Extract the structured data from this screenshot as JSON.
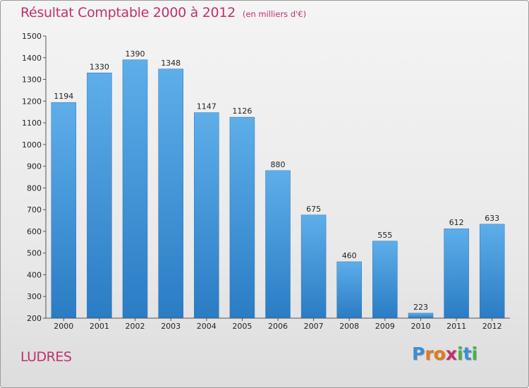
{
  "chart_data": {
    "type": "bar",
    "title": "Résultat Comptable 2000 à 2012",
    "subtitle": "(en milliers d'€)",
    "categories": [
      "2000",
      "2001",
      "2002",
      "2003",
      "2004",
      "2005",
      "2006",
      "2007",
      "2008",
      "2009",
      "2010",
      "2011",
      "2012"
    ],
    "values": [
      1194,
      1330,
      1390,
      1348,
      1147,
      1126,
      880,
      675,
      460,
      555,
      223,
      612,
      633
    ],
    "ylim": [
      200,
      1500
    ],
    "yticks": [
      200,
      300,
      400,
      500,
      600,
      700,
      800,
      900,
      1000,
      1100,
      1200,
      1300,
      1400,
      1500
    ],
    "xlabel": "",
    "ylabel": "",
    "grid": false,
    "bar_color": "#3b8fd6"
  },
  "commune": "LUDRES",
  "logo": {
    "text": "Proxiti",
    "letters": [
      {
        "char": "P",
        "color": "#3a8fd4"
      },
      {
        "char": "r",
        "color": "#e07a1c"
      },
      {
        "char": "o",
        "color": "#e07a1c"
      },
      {
        "char": "x",
        "color": "#c0306c"
      },
      {
        "char": "i",
        "color": "#48b04a"
      },
      {
        "char": "t",
        "color": "#3a8fd4"
      },
      {
        "char": "i",
        "color": "#48b04a"
      }
    ]
  }
}
